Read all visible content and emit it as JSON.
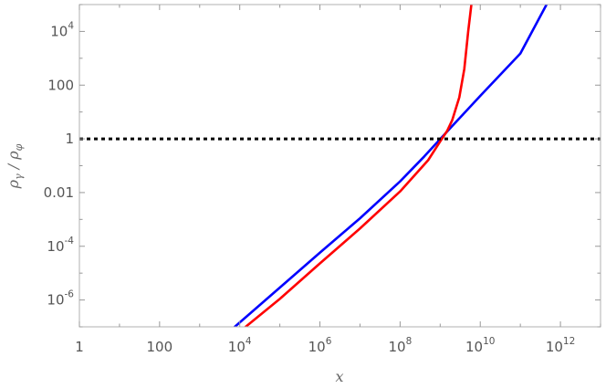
{
  "chart_data": {
    "type": "line",
    "title": "",
    "xlabel": "x",
    "ylabel": "ρ_γ / ρ_φ",
    "x_scale": "log",
    "y_scale": "log",
    "xlim": [
      1,
      10000000000000.0
    ],
    "ylim": [
      1e-07,
      100000.0
    ],
    "grid": false,
    "legend": "none",
    "x_ticks": [
      {
        "value": 1,
        "base": "1",
        "exp": ""
      },
      {
        "value": 100,
        "base": "100",
        "exp": ""
      },
      {
        "value": 10000,
        "base": "10",
        "exp": "4"
      },
      {
        "value": 1000000,
        "base": "10",
        "exp": "6"
      },
      {
        "value": 100000000,
        "base": "10",
        "exp": "8"
      },
      {
        "value": 10000000000,
        "base": "10",
        "exp": "10"
      },
      {
        "value": 1000000000000,
        "base": "10",
        "exp": "12"
      }
    ],
    "y_ticks": [
      {
        "value": 1e-06,
        "base": "10",
        "exp": "-6"
      },
      {
        "value": 0.0001,
        "base": "10",
        "exp": "-4"
      },
      {
        "value": 0.01,
        "base": "0.01",
        "exp": ""
      },
      {
        "value": 1,
        "base": "1",
        "exp": ""
      },
      {
        "value": 100,
        "base": "100",
        "exp": ""
      },
      {
        "value": 10000,
        "base": "10",
        "exp": "4"
      }
    ],
    "series": [
      {
        "color": "#0000ff",
        "style": "solid",
        "x": [
          7500,
          100000,
          1000000,
          10000000,
          100000000,
          400000000,
          2000000000,
          10000000000,
          100000000000,
          450000000000
        ],
        "y": [
          1e-07,
          2.9e-06,
          5.8e-05,
          0.0011,
          0.026,
          0.22,
          3.0,
          40.0,
          1500.0,
          100000.0
        ]
      },
      {
        "color": "#ff0000",
        "style": "solid",
        "x": [
          14000,
          100000,
          1000000,
          10000000,
          100000000,
          500000000,
          1000000000,
          1500000000,
          2000000000,
          3000000000,
          4000000000,
          5000000000,
          6000000000
        ],
        "y": [
          1e-07,
          1.1e-06,
          2.3e-05,
          0.00046,
          0.011,
          0.16,
          0.8,
          2.0,
          5.0,
          35.0,
          400.0,
          10000.0,
          100000.0
        ]
      },
      {
        "color": "#000000",
        "style": "dotted",
        "x": [
          1,
          10000000000000
        ],
        "y": [
          1,
          1
        ]
      }
    ]
  }
}
